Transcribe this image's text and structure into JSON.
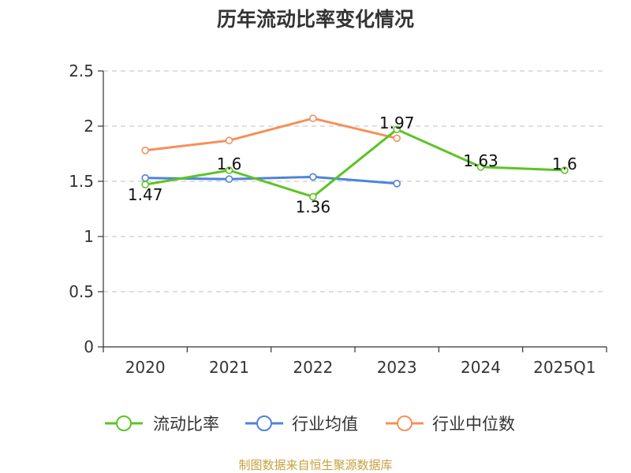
{
  "chart_data": {
    "type": "line",
    "title": "历年流动比率变化情况",
    "categories": [
      "2020",
      "2021",
      "2022",
      "2023",
      "2024",
      "2025Q1"
    ],
    "ylim": [
      0,
      2.5
    ],
    "yticks": [
      "0",
      "0.5",
      "1",
      "1.5",
      "2",
      "2.5"
    ],
    "ytick_values": [
      0,
      0.5,
      1,
      1.5,
      2,
      2.5
    ],
    "grid": true,
    "legend_position": "bottom",
    "series": [
      {
        "name": "流动比率",
        "color": "#5cc424",
        "values": [
          1.47,
          1.6,
          1.36,
          1.97,
          1.63,
          1.6
        ],
        "labels": [
          "1.47",
          "1.6",
          "1.36",
          "1.97",
          "1.63",
          "1.6"
        ]
      },
      {
        "name": "行业均值",
        "color": "#4f83d9",
        "values": [
          1.53,
          1.52,
          1.54,
          1.48,
          null,
          null
        ],
        "labels": null
      },
      {
        "name": "行业中位数",
        "color": "#f5905a",
        "values": [
          1.78,
          1.87,
          2.07,
          1.89,
          null,
          null
        ],
        "labels": null
      }
    ]
  },
  "source": "制图数据来自恒生聚源数据库"
}
